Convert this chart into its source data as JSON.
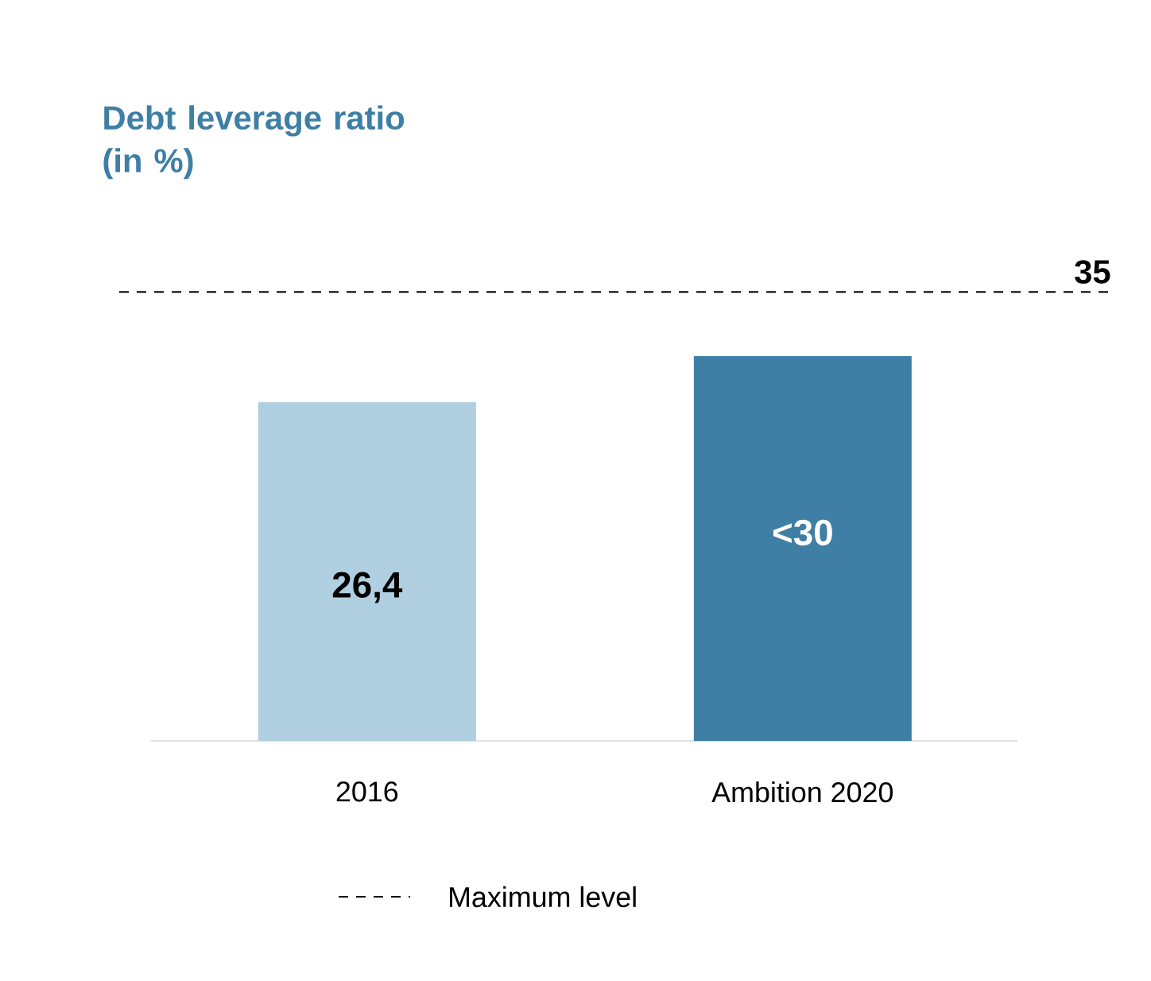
{
  "chart_data": {
    "type": "bar",
    "title": "Debt leverage ratio (in %)",
    "categories": [
      "2016",
      "Ambition 2020"
    ],
    "values": [
      26.4,
      30
    ],
    "colors": [
      "#b0cfe0",
      "#3f7fa5"
    ],
    "value_labels": [
      "26,4",
      "<30"
    ],
    "ref_lines": [
      {
        "axis": "y",
        "value": 35,
        "label": "Maximum level",
        "line_style": "dashed",
        "color": "#000000"
      }
    ],
    "annotations": [
      {
        "text": "35",
        "y": 35
      }
    ],
    "legend": "bottom"
  }
}
